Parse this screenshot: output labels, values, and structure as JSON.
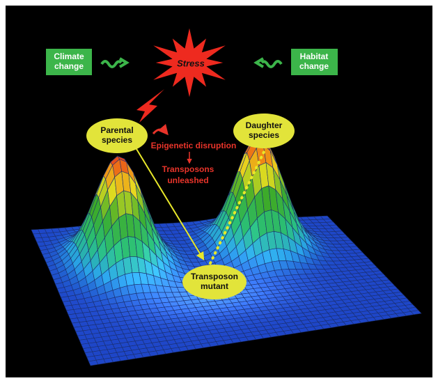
{
  "labels": {
    "climate_change": [
      "Climate",
      "change"
    ],
    "habitat_change": [
      "Habitat",
      "change"
    ],
    "stress": "Stress",
    "parental_species": [
      "Parental",
      "species"
    ],
    "daughter_species": [
      "Daughter",
      "species"
    ],
    "epigenetic_disruption": "Epigenetic disruption",
    "transposons_unleashed": [
      "Transposons",
      "unleashed"
    ],
    "transposon_mutant": [
      "Transposon",
      "mutant"
    ]
  }
}
